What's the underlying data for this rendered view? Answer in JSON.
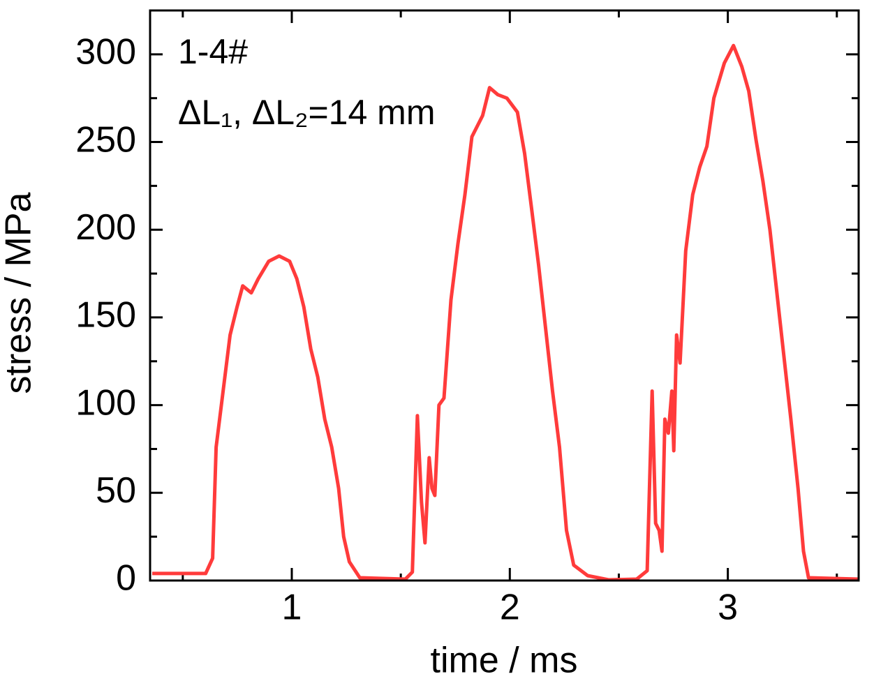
{
  "chart_data": {
    "type": "line",
    "xlabel": "time / ms",
    "ylabel": "stress / MPa",
    "annotations": [
      "1-4#",
      "ΔL₁, ΔL₂=14 mm"
    ],
    "xlim": [
      0.35,
      3.6
    ],
    "ylim": [
      0,
      325
    ],
    "xticks": [
      1,
      2,
      3
    ],
    "yticks": [
      0,
      50,
      100,
      150,
      200,
      250,
      300
    ],
    "minor_xticks": [
      0.5,
      1.5,
      2.5,
      3.5
    ],
    "minor_yticks": [
      25,
      75,
      125,
      175,
      225,
      275,
      325
    ],
    "grid": false,
    "x": [
      0.36,
      0.605,
      0.637,
      0.653,
      0.685,
      0.717,
      0.749,
      0.775,
      0.814,
      0.846,
      0.894,
      0.942,
      0.99,
      1.023,
      1.055,
      1.087,
      1.119,
      1.151,
      1.183,
      1.215,
      1.238,
      1.264,
      1.312,
      1.521,
      1.553,
      1.576,
      1.595,
      1.611,
      1.63,
      1.643,
      1.656,
      1.675,
      1.698,
      1.73,
      1.762,
      1.794,
      1.826,
      1.875,
      1.907,
      1.945,
      1.987,
      2.035,
      2.068,
      2.1,
      2.132,
      2.164,
      2.196,
      2.228,
      2.26,
      2.293,
      2.357,
      2.453,
      2.582,
      2.63,
      2.653,
      2.669,
      2.685,
      2.698,
      2.711,
      2.727,
      2.743,
      2.752,
      2.765,
      2.781,
      2.807,
      2.839,
      2.871,
      2.904,
      2.936,
      2.984,
      3.026,
      3.064,
      3.096,
      3.129,
      3.161,
      3.193,
      3.225,
      3.257,
      3.289,
      3.322,
      3.347,
      3.37,
      3.6
    ],
    "series": [
      {
        "name": "1-4#",
        "color": "#ff3b3b",
        "values": [
          4,
          4,
          12.7,
          76,
          108,
          140,
          156,
          168,
          164,
          172,
          182,
          185,
          182,
          172,
          156,
          132,
          116,
          92,
          76,
          52.5,
          25,
          10.7,
          1.6,
          0.8,
          4.8,
          94,
          44.6,
          21.5,
          70,
          52.5,
          48.5,
          100,
          104,
          160,
          192,
          220,
          253,
          265,
          281,
          277,
          275,
          267,
          243.5,
          212,
          180,
          144,
          108,
          76,
          28.6,
          8.8,
          2.8,
          0.4,
          0.8,
          5.6,
          108,
          32.6,
          28.6,
          16.7,
          92,
          84,
          108,
          74,
          140,
          124,
          188,
          220,
          235.6,
          247.5,
          275,
          295,
          305,
          293,
          279,
          251.5,
          227.6,
          200,
          164,
          128,
          92,
          52.5,
          16.7,
          1.6,
          0.8
        ]
      }
    ]
  }
}
